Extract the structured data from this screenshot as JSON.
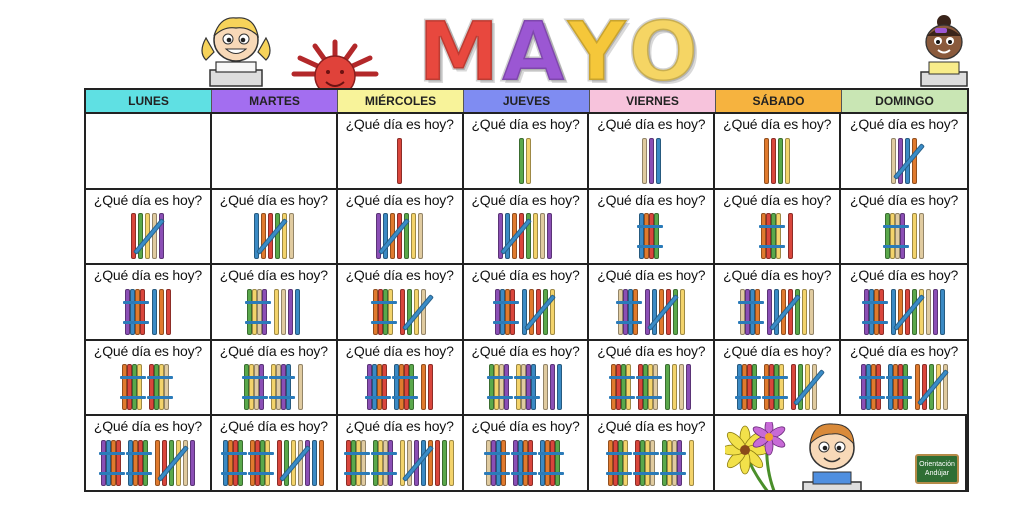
{
  "title": {
    "letters": [
      "M",
      "A",
      "Y",
      "O"
    ],
    "colors": [
      "#e8483e",
      "#9b57d3",
      "#f5c73a",
      "#f5d564"
    ]
  },
  "days": [
    {
      "label": "LUNES",
      "color": "#5fe0e3"
    },
    {
      "label": "MARTES",
      "color": "#a36ef0"
    },
    {
      "label": "MIÉRCOLES",
      "color": "#f8f39a"
    },
    {
      "label": "JUEVES",
      "color": "#7f8cf2"
    },
    {
      "label": "VIERNES",
      "color": "#f7c3dc"
    },
    {
      "label": "SÁBADO",
      "color": "#f6b33f"
    },
    {
      "label": "DOMINGO",
      "color": "#c9e6b4"
    }
  ],
  "question": "¿Qué día es hoy?",
  "calendar_days": [
    null,
    null,
    1,
    2,
    3,
    4,
    5,
    6,
    7,
    8,
    9,
    10,
    11,
    12,
    13,
    14,
    15,
    16,
    17,
    18,
    19,
    20,
    21,
    22,
    23,
    24,
    25,
    26,
    27,
    28,
    29,
    30,
    31
  ],
  "stick_colors": [
    "#d9463c",
    "#5aa84b",
    "#f3d36b",
    "#e0cba0",
    "#8b4fb5",
    "#3b8ac4",
    "#e07a2e"
  ],
  "icons": {
    "girl": "girl-with-book-icon",
    "sun": "sun-icon",
    "boy_top": "boy-with-book-icon",
    "flowers": "flowers-icon",
    "boy_bottom": "boy-at-desk-icon",
    "logo": "chalkboard-logo-icon"
  },
  "logo_text": "Orientación Andújar"
}
